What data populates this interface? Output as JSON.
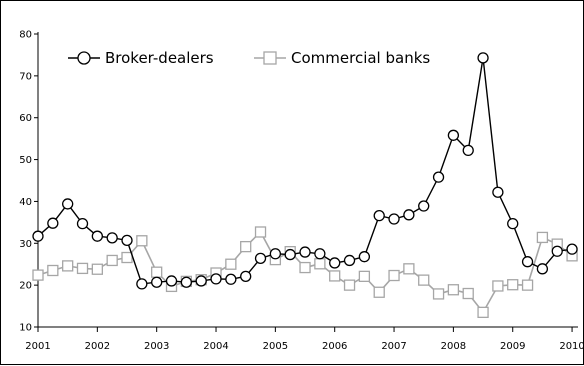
{
  "chart_data": {
    "type": "line",
    "title": "",
    "xlabel": "",
    "ylabel": "",
    "xlim": [
      2001,
      2010.1
    ],
    "ylim": [
      10,
      80
    ],
    "grid": false,
    "legend_position": "top-left",
    "x_ticks": [
      "2001",
      "2002",
      "2003",
      "2004",
      "2005",
      "2006",
      "2007",
      "2008",
      "2009",
      "2010"
    ],
    "y_ticks": [
      "10",
      "20",
      "30",
      "40",
      "50",
      "60",
      "70",
      "80"
    ],
    "x": [
      2001.0,
      2001.25,
      2001.5,
      2001.75,
      2002.0,
      2002.25,
      2002.5,
      2002.75,
      2003.0,
      2003.25,
      2003.5,
      2003.75,
      2004.0,
      2004.25,
      2004.5,
      2004.75,
      2005.0,
      2005.25,
      2005.5,
      2005.75,
      2006.0,
      2006.25,
      2006.5,
      2006.75,
      2007.0,
      2007.25,
      2007.5,
      2007.75,
      2008.0,
      2008.25,
      2008.5,
      2008.75,
      2009.0,
      2009.25,
      2009.5,
      2009.75,
      2010.0
    ],
    "series": [
      {
        "name": "Broker-dealers",
        "marker": "circle",
        "color": "#000000",
        "values": [
          31.7,
          34.8,
          39.4,
          34.7,
          31.7,
          31.3,
          30.7,
          20.3,
          20.7,
          21.0,
          20.7,
          21.0,
          21.5,
          21.4,
          22.1,
          26.4,
          27.5,
          27.3,
          27.9,
          27.5,
          25.3,
          25.9,
          26.8,
          36.6,
          35.8,
          36.8,
          38.9,
          45.8,
          55.8,
          52.2,
          74.3,
          42.2,
          34.7,
          25.6,
          23.9,
          28.1,
          28.6
        ]
      },
      {
        "name": "Commercial banks",
        "marker": "square",
        "color": "#a6a6a6",
        "values": [
          22.4,
          23.5,
          24.6,
          24.0,
          23.8,
          25.9,
          26.6,
          30.6,
          23.1,
          19.7,
          20.9,
          21.3,
          22.9,
          25.0,
          29.2,
          32.7,
          26.1,
          28.0,
          24.2,
          25.1,
          22.2,
          20.0,
          22.1,
          18.3,
          22.3,
          23.9,
          21.2,
          17.9,
          18.9,
          18.0,
          13.5,
          19.8,
          20.1,
          20.0,
          31.4,
          29.8,
          27.0
        ]
      }
    ]
  }
}
